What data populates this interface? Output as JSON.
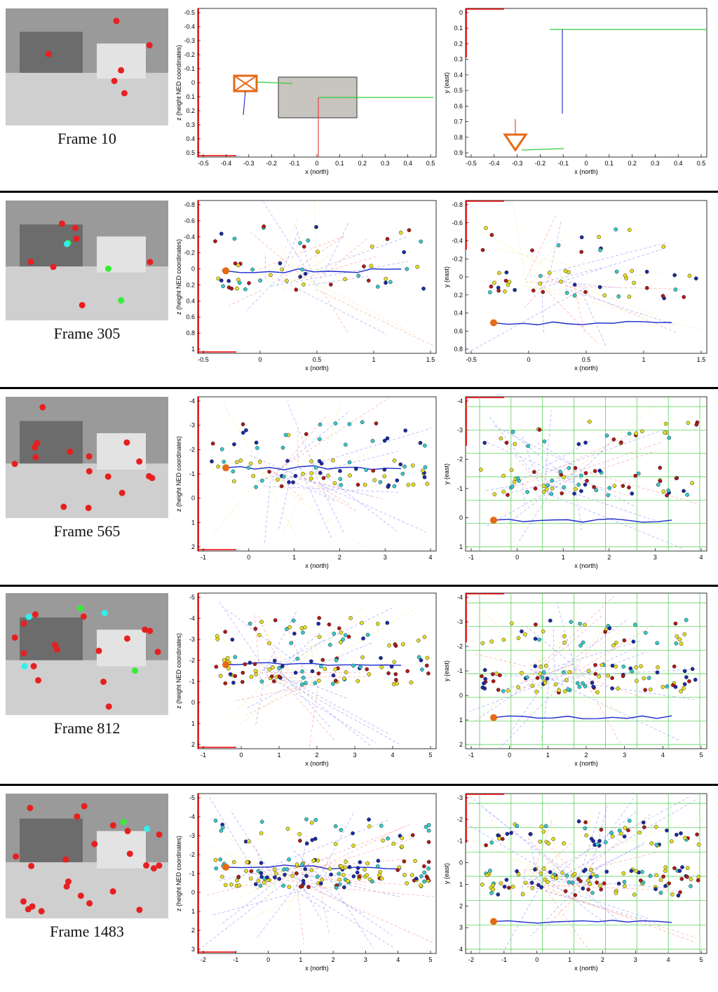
{
  "figure": {
    "rows": [
      {
        "frame_label": "Frame 10",
        "xz_plot": {
          "xlabel": "x (north)",
          "ylabel": "z (height NED coordinates)",
          "x_ticks": [
            "-0.5",
            "-0.4",
            "-0.3",
            "-0.2",
            "-0.1",
            "0",
            "0.1",
            "0.2",
            "0.3",
            "0.4",
            "0.5"
          ],
          "y_ticks": [
            "-0.5",
            "-0.4",
            "-0.3",
            "-0.2",
            "-0.1",
            "0",
            "0.1",
            "0.2",
            "0.3",
            "0.4",
            "0.5"
          ]
        },
        "xy_plot": {
          "xlabel": "x (north)",
          "ylabel": "y (east)",
          "x_ticks": [
            "-0.5",
            "-0.4",
            "-0.3",
            "-0.2",
            "-0.1",
            "0",
            "0.1",
            "0.2",
            "0.3",
            "0.4",
            "0.5"
          ],
          "y_ticks": [
            "0",
            "0.1",
            "0.2",
            "0.3",
            "0.4",
            "0.5",
            "0.6",
            "0.7",
            "0.8",
            "0.9"
          ]
        }
      },
      {
        "frame_label": "Frame 305",
        "xz_plot": {
          "xlabel": "x (north)",
          "ylabel": "z (height NED coordinates)",
          "x_ticks": [
            "-0.5",
            "0",
            "0.5",
            "1",
            "1.5"
          ],
          "y_ticks": [
            "-0.8",
            "-0.6",
            "-0.4",
            "-0.2",
            "0",
            "0.2",
            "0.4",
            "0.6",
            "0.8",
            "1"
          ]
        },
        "xy_plot": {
          "xlabel": "x (north)",
          "ylabel": "y (east)",
          "x_ticks": [
            "-0.5",
            "0",
            "0.5",
            "1",
            "1.5"
          ],
          "y_ticks": [
            "-0.8",
            "-0.6",
            "-0.4",
            "-0.2",
            "0",
            "0.2",
            "0.4",
            "0.6",
            "0.8"
          ]
        }
      },
      {
        "frame_label": "Frame 565",
        "xz_plot": {
          "xlabel": "x (north)",
          "ylabel": "z (height NED coordinates)",
          "x_ticks": [
            "-1",
            "0",
            "1",
            "2",
            "3",
            "4"
          ],
          "y_ticks": [
            "-4",
            "-3",
            "-2",
            "-1",
            "0",
            "1",
            "2"
          ]
        },
        "xy_plot": {
          "xlabel": "x (north)",
          "ylabel": "y (east)",
          "x_ticks": [
            "-1",
            "0",
            "1",
            "2",
            "3",
            "4"
          ],
          "y_ticks": [
            "-4",
            "-3",
            "-2",
            "-1",
            "0",
            "1"
          ]
        }
      },
      {
        "frame_label": "Frame 812",
        "xz_plot": {
          "xlabel": "x (north)",
          "ylabel": "z (height NED coordinates)",
          "x_ticks": [
            "-1",
            "0",
            "1",
            "2",
            "3",
            "4",
            "5"
          ],
          "y_ticks": [
            "-5",
            "-4",
            "-3",
            "-2",
            "-1",
            "0",
            "1",
            "2"
          ]
        },
        "xy_plot": {
          "xlabel": "x (north)",
          "ylabel": "y (east)",
          "x_ticks": [
            "-1",
            "0",
            "1",
            "2",
            "3",
            "4",
            "5"
          ],
          "y_ticks": [
            "-4",
            "-3",
            "-2",
            "-1",
            "0",
            "1",
            "2"
          ]
        }
      },
      {
        "frame_label": "Frame 1483",
        "xz_plot": {
          "xlabel": "x (north)",
          "ylabel": "z (height NED coordinates)",
          "x_ticks": [
            "-2",
            "-1",
            "0",
            "1",
            "2",
            "3",
            "4",
            "5"
          ],
          "y_ticks": [
            "-5",
            "-4",
            "-3",
            "-2",
            "-1",
            "0",
            "1",
            "2",
            "3"
          ]
        },
        "xy_plot": {
          "xlabel": "x (north)",
          "ylabel": "y (east)",
          "x_ticks": [
            "-2",
            "-1",
            "0",
            "1",
            "2",
            "3",
            "4",
            "5"
          ],
          "y_ticks": [
            "-3",
            "-2",
            "-1",
            "0",
            "1",
            "2",
            "3",
            "4"
          ]
        }
      }
    ]
  }
}
